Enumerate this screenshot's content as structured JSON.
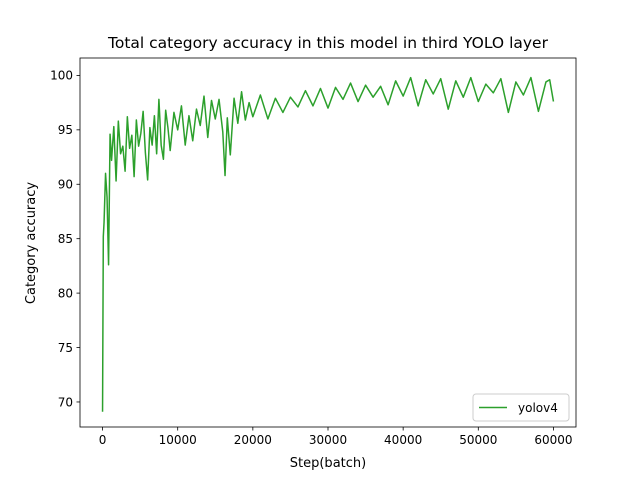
{
  "chart_data": {
    "type": "line",
    "title": "Total category accuracy in this model in third YOLO layer",
    "xlabel": "Step(batch)",
    "ylabel": "Category accuracy",
    "xlim": [
      -3000,
      63000
    ],
    "ylim": [
      67.7,
      101.6
    ],
    "xticks": [
      0,
      10000,
      20000,
      30000,
      40000,
      50000,
      60000
    ],
    "xtick_labels": [
      "0",
      "10000",
      "20000",
      "30000",
      "40000",
      "50000",
      "60000"
    ],
    "yticks": [
      70,
      75,
      80,
      85,
      90,
      95,
      100
    ],
    "ytick_labels": [
      "70",
      "75",
      "80",
      "85",
      "90",
      "95",
      "100"
    ],
    "grid": false,
    "legend_position": "lower right",
    "series": [
      {
        "name": "yolov4",
        "color": "#2ca02c",
        "x": [
          0,
          100,
          200,
          400,
          600,
          800,
          1000,
          1200,
          1500,
          1800,
          2100,
          2400,
          2700,
          3000,
          3300,
          3600,
          3900,
          4200,
          4500,
          4800,
          5100,
          5400,
          5700,
          6000,
          6300,
          6600,
          6900,
          7200,
          7500,
          7800,
          8100,
          8400,
          8700,
          9000,
          9500,
          10000,
          10500,
          11000,
          11500,
          12000,
          12500,
          13000,
          13500,
          14000,
          14500,
          15000,
          15500,
          16000,
          16300,
          16600,
          17000,
          17500,
          18000,
          18500,
          19000,
          19500,
          20000,
          21000,
          22000,
          23000,
          24000,
          25000,
          26000,
          27000,
          28000,
          29000,
          30000,
          31000,
          32000,
          33000,
          34000,
          35000,
          36000,
          37000,
          38000,
          39000,
          40000,
          41000,
          42000,
          43000,
          44000,
          45000,
          46000,
          47000,
          48000,
          49000,
          50000,
          51000,
          52000,
          53000,
          54000,
          55000,
          56000,
          57000,
          58000,
          59000,
          59500,
          60000
        ],
        "y": [
          69.1,
          85.2,
          86.5,
          91.0,
          88.8,
          82.6,
          94.6,
          92.2,
          95.3,
          90.3,
          95.8,
          92.8,
          93.5,
          91.2,
          96.2,
          93.3,
          94.5,
          90.7,
          95.9,
          93.5,
          94.7,
          96.7,
          92.9,
          90.4,
          95.2,
          93.6,
          96.3,
          92.8,
          97.8,
          93.6,
          92.3,
          96.8,
          95.2,
          93.1,
          96.6,
          95.0,
          97.2,
          93.6,
          96.3,
          94.0,
          96.9,
          95.4,
          98.1,
          94.3,
          97.7,
          96.0,
          97.8,
          94.8,
          90.8,
          96.1,
          92.7,
          97.9,
          95.6,
          98.5,
          95.9,
          97.5,
          96.2,
          98.2,
          96.0,
          97.9,
          96.6,
          98.0,
          97.1,
          98.6,
          97.2,
          98.8,
          97.0,
          98.9,
          97.8,
          99.3,
          97.6,
          99.1,
          98.0,
          99.0,
          97.3,
          99.5,
          98.1,
          99.8,
          97.2,
          99.6,
          98.3,
          99.7,
          96.9,
          99.5,
          98.0,
          99.8,
          97.6,
          99.2,
          98.4,
          99.7,
          96.6,
          99.4,
          98.2,
          99.8,
          96.7,
          99.4,
          99.6,
          97.6
        ]
      }
    ]
  }
}
